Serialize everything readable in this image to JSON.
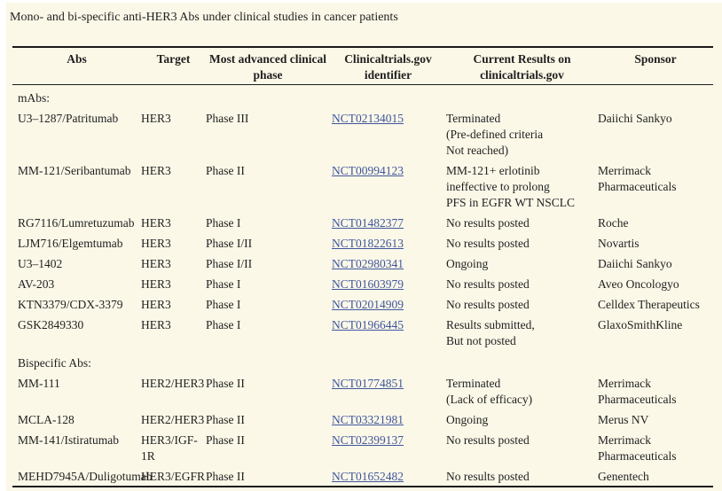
{
  "title": "Mono- and bi-specific anti-HER3 Abs under clinical studies in cancer patients",
  "colors": {
    "background": "#fbf8e8",
    "text": "#1f1f1f",
    "link": "#40569c",
    "rule": "#1b1b1b"
  },
  "table": {
    "headers": [
      {
        "line1": "Abs",
        "line2": ""
      },
      {
        "line1": "Target",
        "line2": ""
      },
      {
        "line1": "Most advanced clinical",
        "line2": "phase"
      },
      {
        "line1": "Clinicaltrials.gov",
        "line2": "identifier"
      },
      {
        "line1": "Current Results on",
        "line2": "clinicaltrials.gov"
      },
      {
        "line1": "Sponsor",
        "line2": ""
      }
    ],
    "sections": [
      {
        "label": "mAbs:",
        "rows": [
          {
            "abs": "U3–1287/Patritumab",
            "target": [
              "HER3"
            ],
            "phase": "Phase III",
            "nct": "NCT02134015",
            "results": [
              "Terminated",
              "(Pre-defined criteria",
              "Not reached)"
            ],
            "sponsor": [
              "Daiichi Sankyo"
            ]
          },
          {
            "abs": "MM-121/Seribantumab",
            "target": [
              "HER3"
            ],
            "phase": "Phase II",
            "nct": "NCT00994123",
            "results": [
              "MM-121+ erlotinib",
              "ineffective to prolong",
              "PFS in EGFR WT NSCLC"
            ],
            "sponsor": [
              "Merrimack",
              "Pharmaceuticals"
            ]
          },
          {
            "abs": "RG7116/Lumretuzumab",
            "target": [
              "HER3"
            ],
            "phase": "Phase I",
            "nct": "NCT01482377",
            "results": [
              "No results posted"
            ],
            "sponsor": [
              "Roche"
            ]
          },
          {
            "abs": "LJM716/Elgemtumab",
            "target": [
              "HER3"
            ],
            "phase": "Phase I/II",
            "nct": "NCT01822613",
            "results": [
              "No results posted"
            ],
            "sponsor": [
              "Novartis"
            ]
          },
          {
            "abs": "U3–1402",
            "target": [
              "HER3"
            ],
            "phase": "Phase I/II",
            "nct": "NCT02980341",
            "results": [
              "Ongoing"
            ],
            "sponsor": [
              "Daiichi Sankyo"
            ]
          },
          {
            "abs": "AV-203",
            "target": [
              "HER3"
            ],
            "phase": "Phase I",
            "nct": "NCT01603979",
            "results": [
              "No results posted"
            ],
            "sponsor": [
              "Aveo Oncologyo"
            ]
          },
          {
            "abs": "KTN3379/CDX-3379",
            "target": [
              "HER3"
            ],
            "phase": "Phase I",
            "nct": "NCT02014909",
            "results": [
              "No results posted"
            ],
            "sponsor": [
              "Celldex Therapeutics"
            ]
          },
          {
            "abs": "GSK2849330",
            "target": [
              "HER3"
            ],
            "phase": "Phase I",
            "nct": "NCT01966445",
            "results": [
              "Results submitted,",
              "But not posted"
            ],
            "sponsor": [
              "GlaxoSmithKline"
            ]
          }
        ]
      },
      {
        "label": "Bispecific Abs:",
        "rows": [
          {
            "abs": "MM-111",
            "target": [
              "HER2/HER3"
            ],
            "phase": "Phase II",
            "nct": "NCT01774851",
            "results": [
              "Terminated",
              "(Lack of efficacy)"
            ],
            "sponsor": [
              "Merrimack",
              "Pharmaceuticals"
            ]
          },
          {
            "abs": "MCLA-128",
            "target": [
              "HER2/HER3"
            ],
            "phase": "Phase II",
            "nct": "NCT03321981",
            "results": [
              "Ongoing"
            ],
            "sponsor": [
              "Merus NV"
            ]
          },
          {
            "abs": "MM-141/Istiratumab",
            "target": [
              "HER3/IGF-",
              "1R"
            ],
            "phase": "Phase II",
            "nct": "NCT02399137",
            "results": [
              "No results posted"
            ],
            "sponsor": [
              "Merrimack",
              "Pharmaceuticals"
            ]
          },
          {
            "abs": "MEHD7945A/Duligotumab",
            "target": [
              "HER3/EGFR"
            ],
            "phase": "Phase II",
            "nct": "NCT01652482",
            "results": [
              "No results posted"
            ],
            "sponsor": [
              "Genentech"
            ]
          }
        ]
      }
    ]
  }
}
